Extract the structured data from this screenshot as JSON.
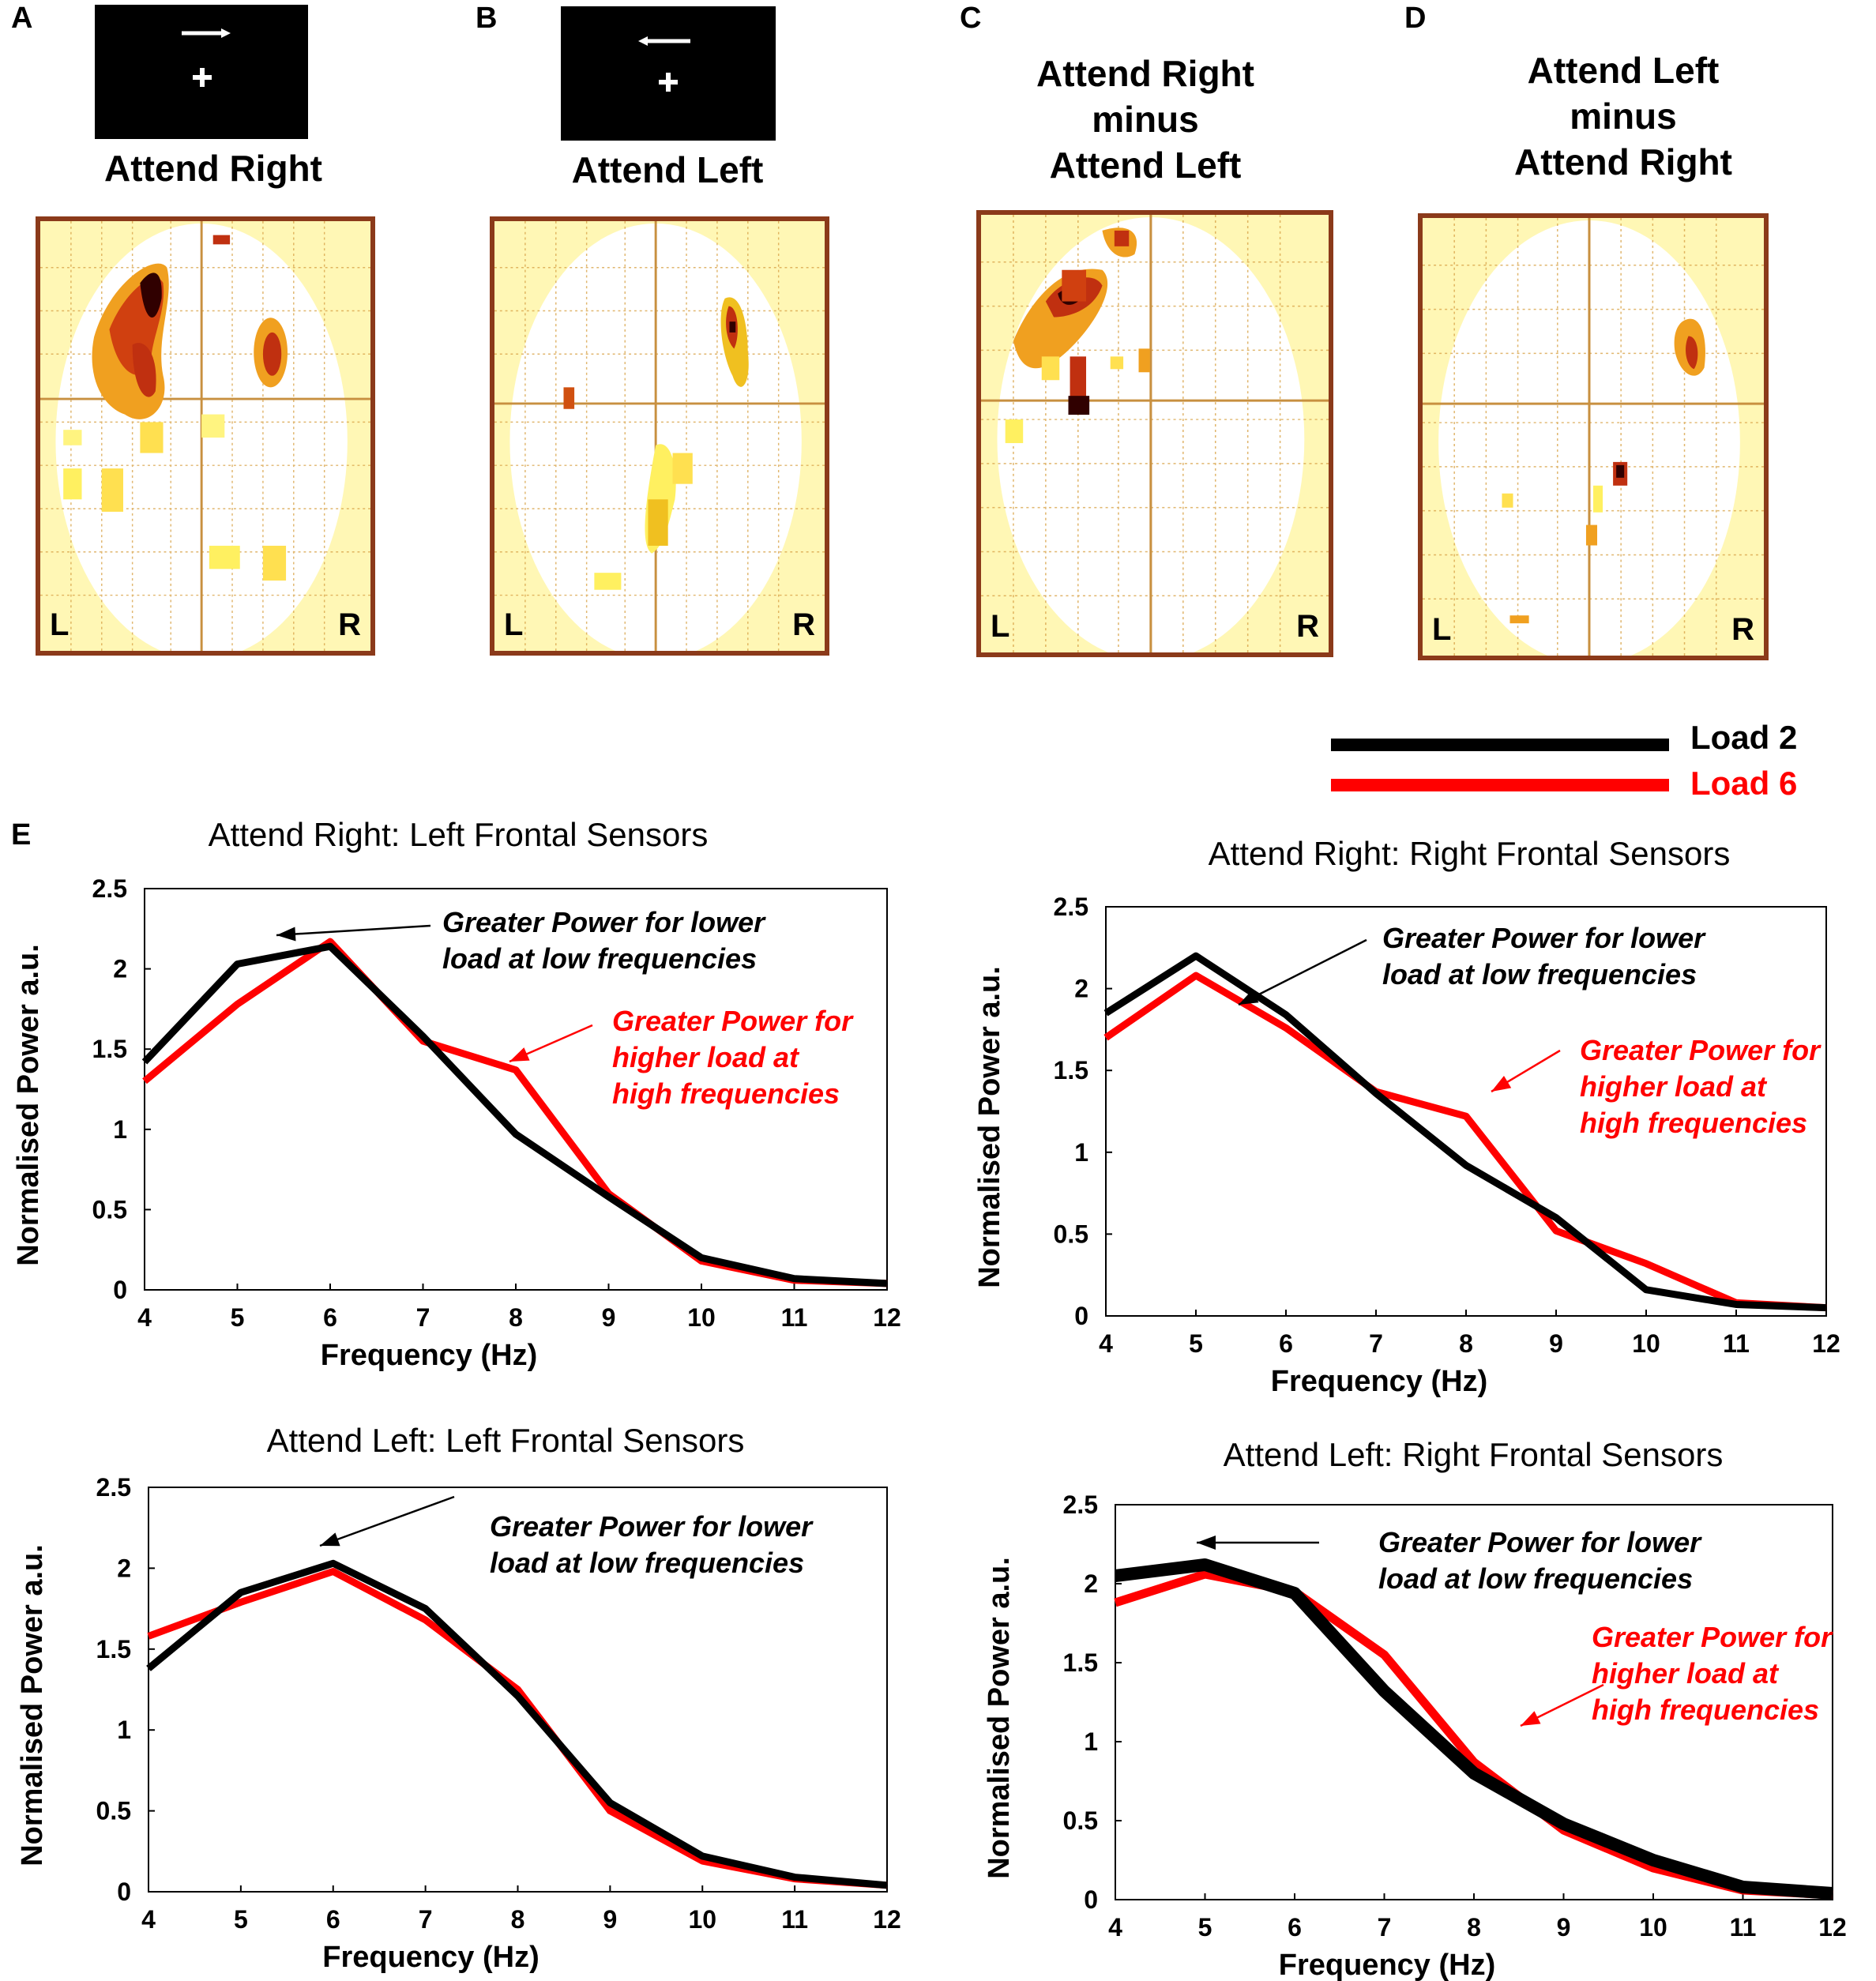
{
  "panels": [
    {
      "letter": "A",
      "title_lines": [
        "Attend Right"
      ],
      "stimulus": "right-arrow",
      "left": "L",
      "right": "R"
    },
    {
      "letter": "B",
      "title_lines": [
        "Attend Left"
      ],
      "stimulus": "left-arrow",
      "left": "L",
      "right": "R"
    },
    {
      "letter": "C",
      "title_lines": [
        "Attend Right",
        "minus",
        "Attend Left"
      ],
      "left": "L",
      "right": "R"
    },
    {
      "letter": "D",
      "title_lines": [
        "Attend Left",
        "minus",
        "Attend Right"
      ],
      "left": "L",
      "right": "R"
    }
  ],
  "legend": [
    {
      "label": "Load 2",
      "color": "#000000"
    },
    {
      "label": "Load 6",
      "color": "#ff0000"
    }
  ],
  "panel_e_letter": "E",
  "colors": {
    "load2": "#000000",
    "load6": "#ff0000",
    "frame": "#8b3a1a",
    "glass": "#fff7b5"
  },
  "chart_data": [
    {
      "type": "line",
      "title": "Attend Right: Left Frontal Sensors",
      "xlabel": "Frequency (Hz)",
      "ylabel": "Normalised Power a.u.",
      "x": [
        4,
        5,
        6,
        7,
        8,
        9,
        10,
        11,
        12
      ],
      "xlim": [
        4,
        12
      ],
      "ylim": [
        0,
        2.5
      ],
      "yticks": [
        "0",
        "0.5",
        "1",
        "1.5",
        "2",
        "2.5"
      ],
      "series": [
        {
          "name": "Load 2",
          "values": [
            1.42,
            2.03,
            2.14,
            1.58,
            0.97,
            0.58,
            0.2,
            0.07,
            0.04
          ]
        },
        {
          "name": "Load 6",
          "values": [
            1.3,
            1.78,
            2.17,
            1.55,
            1.37,
            0.6,
            0.18,
            0.06,
            0.04
          ]
        }
      ],
      "annotations": [
        {
          "lines": [
            "Greater Power for lower",
            "load at low frequencies"
          ],
          "color": "#000000"
        },
        {
          "lines": [
            "Greater Power for",
            "higher load at",
            "high frequencies"
          ],
          "color": "#ff0000"
        }
      ]
    },
    {
      "type": "line",
      "title": "Attend Right: Right Frontal Sensors",
      "xlabel": "Frequency (Hz)",
      "ylabel": "Normalised Power a.u.",
      "x": [
        4,
        5,
        6,
        7,
        8,
        9,
        10,
        11,
        12
      ],
      "xlim": [
        4,
        12
      ],
      "ylim": [
        0,
        2.5
      ],
      "yticks": [
        "0",
        "0.5",
        "1",
        "1.5",
        "2",
        "2.5"
      ],
      "series": [
        {
          "name": "Load 2",
          "values": [
            1.85,
            2.2,
            1.84,
            1.36,
            0.92,
            0.6,
            0.16,
            0.07,
            0.05
          ]
        },
        {
          "name": "Load 6",
          "values": [
            1.7,
            2.08,
            1.76,
            1.37,
            1.22,
            0.52,
            0.32,
            0.08,
            0.05
          ]
        }
      ],
      "annotations": [
        {
          "lines": [
            "Greater Power for lower",
            "load at low frequencies"
          ],
          "color": "#000000"
        },
        {
          "lines": [
            "Greater Power for",
            "higher load at",
            "high frequencies"
          ],
          "color": "#ff0000"
        }
      ]
    },
    {
      "type": "line",
      "title": "Attend Left: Left Frontal Sensors",
      "xlabel": "Frequency (Hz)",
      "ylabel": "Normalised Power a.u.",
      "x": [
        4,
        5,
        6,
        7,
        8,
        9,
        10,
        11,
        12
      ],
      "xlim": [
        4,
        12
      ],
      "ylim": [
        0,
        2.5
      ],
      "yticks": [
        "0",
        "0.5",
        "1",
        "1.5",
        "2",
        "2.5"
      ],
      "series": [
        {
          "name": "Load 2",
          "values": [
            1.38,
            1.85,
            2.03,
            1.75,
            1.21,
            0.55,
            0.22,
            0.09,
            0.04
          ]
        },
        {
          "name": "Load 6",
          "values": [
            1.58,
            1.79,
            1.98,
            1.68,
            1.25,
            0.5,
            0.19,
            0.08,
            0.04
          ]
        }
      ],
      "annotations": [
        {
          "lines": [
            "Greater Power for lower",
            "load at low frequencies"
          ],
          "color": "#000000"
        }
      ]
    },
    {
      "type": "line",
      "title": "Attend Left: Right Frontal Sensors",
      "xlabel": "Frequency (Hz)",
      "ylabel": "Normalised Power a.u.",
      "x": [
        4,
        5,
        6,
        7,
        8,
        9,
        10,
        11,
        12
      ],
      "xlim": [
        4,
        12
      ],
      "ylim": [
        0,
        2.5
      ],
      "yticks": [
        "0",
        "0.5",
        "1",
        "1.5",
        "2",
        "2.5"
      ],
      "series": [
        {
          "name": "Load 2",
          "values": [
            2.05,
            2.12,
            1.94,
            1.32,
            0.8,
            0.48,
            0.25,
            0.08,
            0.04
          ]
        },
        {
          "name": "Load 6",
          "values": [
            1.88,
            2.06,
            1.95,
            1.55,
            0.87,
            0.44,
            0.2,
            0.06,
            0.03
          ]
        }
      ],
      "annotations": [
        {
          "lines": [
            "Greater Power for lower",
            "load at low frequencies"
          ],
          "color": "#000000"
        },
        {
          "lines": [
            "Greater Power for",
            "higher load at",
            "high frequencies"
          ],
          "color": "#ff0000"
        }
      ]
    }
  ]
}
